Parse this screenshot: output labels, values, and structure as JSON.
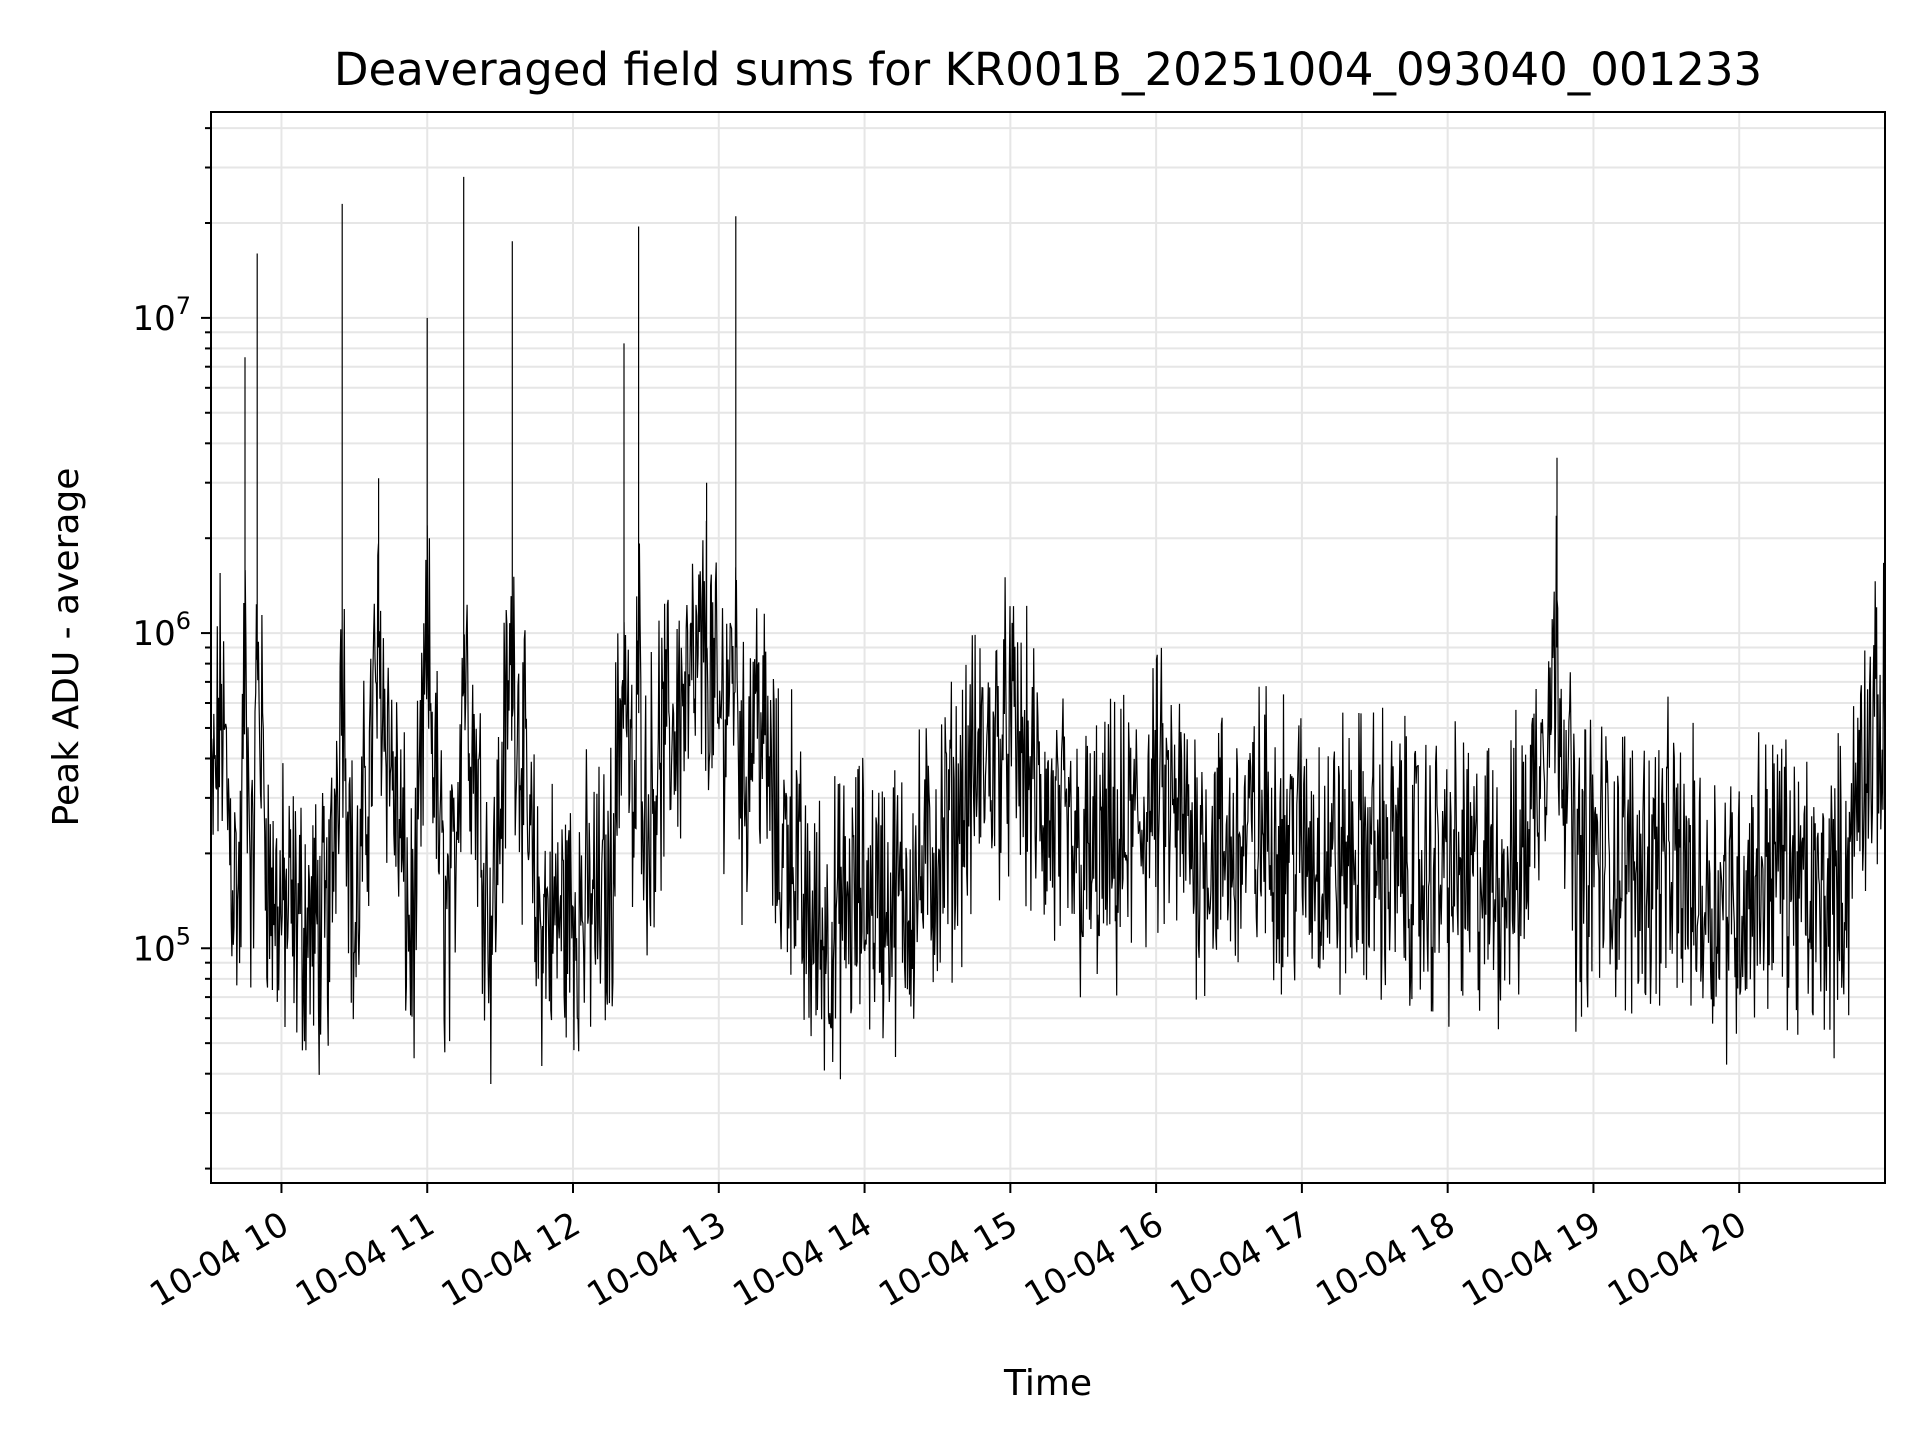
{
  "chart_data": {
    "type": "line",
    "title": "Deaveraged field sums for KR001B_20251004_093040_001233",
    "xlabel": "Time",
    "ylabel": "Peak ADU - average",
    "yscale": "log",
    "grid": true,
    "legend": "none",
    "line_color": "#000000",
    "grid_color": "#e6e6e6",
    "xlim": [
      "2025-10-04 09:31",
      "2025-10-04 21:00"
    ],
    "ylim": [
      18000,
      45000000
    ],
    "x_ticks": [
      "10-04 10",
      "10-04 11",
      "10-04 12",
      "10-04 13",
      "10-04 14",
      "10-04 15",
      "10-04 16",
      "10-04 17",
      "10-04 18",
      "10-04 19",
      "10-04 20"
    ],
    "y_ticks": [
      {
        "base": "10",
        "exp": "5"
      },
      {
        "base": "10",
        "exp": "6"
      },
      {
        "base": "10",
        "exp": "7"
      }
    ],
    "series": [
      {
        "x": [
          "2025-10-04 09:31",
          "2025-10-04 09:35",
          "2025-10-04 09:40",
          "2025-10-04 09:43",
          "2025-10-04 09:45",
          "2025-10-04 09:48",
          "2025-10-04 09:50",
          "2025-10-04 09:55",
          "2025-10-04 10:00",
          "2025-10-04 10:10",
          "2025-10-04 10:17",
          "2025-10-04 10:20",
          "2025-10-04 10:25",
          "2025-10-04 10:30",
          "2025-10-04 10:40",
          "2025-10-04 10:53",
          "2025-10-04 10:55",
          "2025-10-04 11:00",
          "2025-10-04 11:07",
          "2025-10-04 11:10",
          "2025-10-04 11:15",
          "2025-10-04 11:25",
          "2025-10-04 11:26",
          "2025-10-04 11:35",
          "2025-10-04 11:45",
          "2025-10-04 12:00",
          "2025-10-04 12:15",
          "2025-10-04 12:21",
          "2025-10-04 12:25",
          "2025-10-04 12:27",
          "2025-10-04 12:30",
          "2025-10-04 12:35",
          "2025-10-04 12:45",
          "2025-10-04 12:50",
          "2025-10-04 12:55",
          "2025-10-04 13:00",
          "2025-10-04 13:07",
          "2025-10-04 13:10",
          "2025-10-04 13:15",
          "2025-10-04 13:25",
          "2025-10-04 13:30",
          "2025-10-04 13:35",
          "2025-10-04 13:45",
          "2025-10-04 14:00",
          "2025-10-04 14:15",
          "2025-10-04 14:30",
          "2025-10-04 14:45",
          "2025-10-04 15:00",
          "2025-10-04 15:15",
          "2025-10-04 15:30",
          "2025-10-04 15:45",
          "2025-10-04 16:00",
          "2025-10-04 16:15",
          "2025-10-04 16:30",
          "2025-10-04 16:45",
          "2025-10-04 17:00",
          "2025-10-04 17:15",
          "2025-10-04 17:30",
          "2025-10-04 17:45",
          "2025-10-04 17:52",
          "2025-10-04 17:55",
          "2025-10-04 18:05",
          "2025-10-04 18:15",
          "2025-10-04 18:30",
          "2025-10-04 18:45",
          "2025-10-04 18:53",
          "2025-10-04 19:00",
          "2025-10-04 19:15",
          "2025-10-04 19:30",
          "2025-10-04 19:45",
          "2025-10-04 20:00",
          "2025-10-04 20:15",
          "2025-10-04 20:30",
          "2025-10-04 20:45",
          "2025-10-04 20:50",
          "2025-10-04 21:00"
        ],
        "y": [
          220000,
          600000,
          180000,
          140000,
          7500000,
          130000,
          16000000,
          150000,
          130000,
          120000,
          110000,
          130000,
          23000000,
          100000,
          3100000,
          110000,
          120000,
          10000000,
          130000,
          120000,
          28000000,
          150000,
          110000,
          17500000,
          120000,
          130000,
          140000,
          8300000,
          200000,
          19500000,
          250000,
          400000,
          600000,
          700000,
          3000000,
          500000,
          21000000,
          300000,
          700000,
          200000,
          250000,
          120000,
          110000,
          150000,
          140000,
          200000,
          350000,
          500000,
          250000,
          180000,
          200000,
          300000,
          220000,
          200000,
          240000,
          210000,
          190000,
          200000,
          180000,
          160000,
          180000,
          170000,
          160000,
          180000,
          3600000,
          170000,
          200000,
          180000,
          190000,
          150000,
          140000,
          200000,
          130000,
          170000,
          400000,
          520000
        ]
      }
    ]
  }
}
